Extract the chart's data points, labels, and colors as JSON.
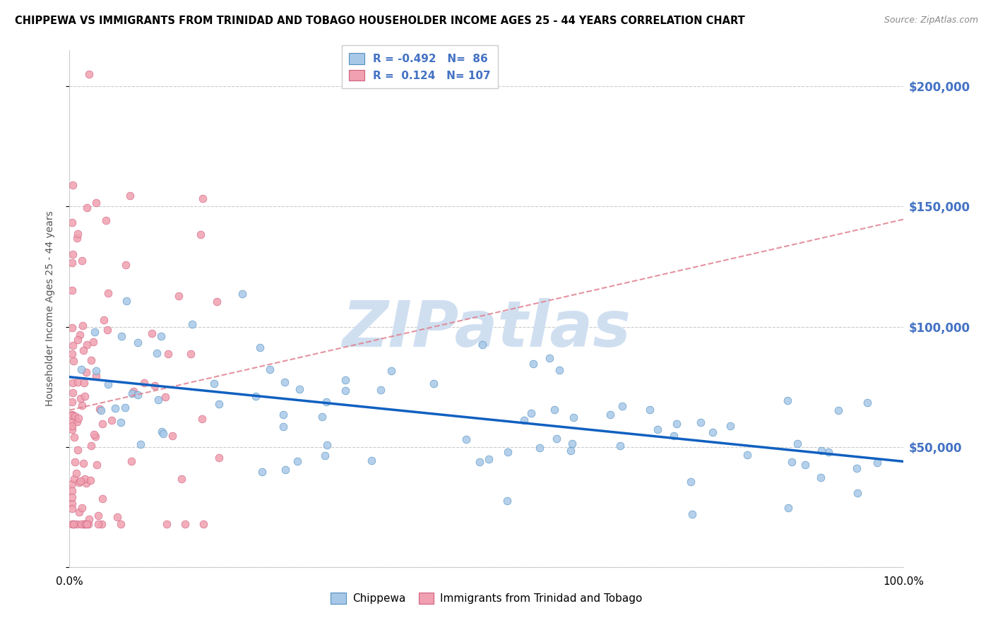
{
  "title": "CHIPPEWA VS IMMIGRANTS FROM TRINIDAD AND TOBAGO HOUSEHOLDER INCOME AGES 25 - 44 YEARS CORRELATION CHART",
  "source": "Source: ZipAtlas.com",
  "ylabel": "Householder Income Ages 25 - 44 years",
  "xlim": [
    0.0,
    100.0
  ],
  "ylim": [
    0,
    215000
  ],
  "yticks": [
    0,
    50000,
    100000,
    150000,
    200000
  ],
  "ytick_labels": [
    "",
    "$50,000",
    "$100,000",
    "$150,000",
    "$200,000"
  ],
  "legend_r1": "-0.492",
  "legend_n1": "86",
  "legend_r2": "0.124",
  "legend_n2": "107",
  "color_blue": "#A8C8E8",
  "color_pink": "#F0A0B0",
  "color_blue_edge": "#5090C0",
  "color_pink_edge": "#D06080",
  "trend_blue": "#1060C0",
  "trend_pink": "#E08090",
  "watermark": "ZIPatlas",
  "watermark_color": "#D0DFF0",
  "blue_seed": 123,
  "pink_seed": 456
}
